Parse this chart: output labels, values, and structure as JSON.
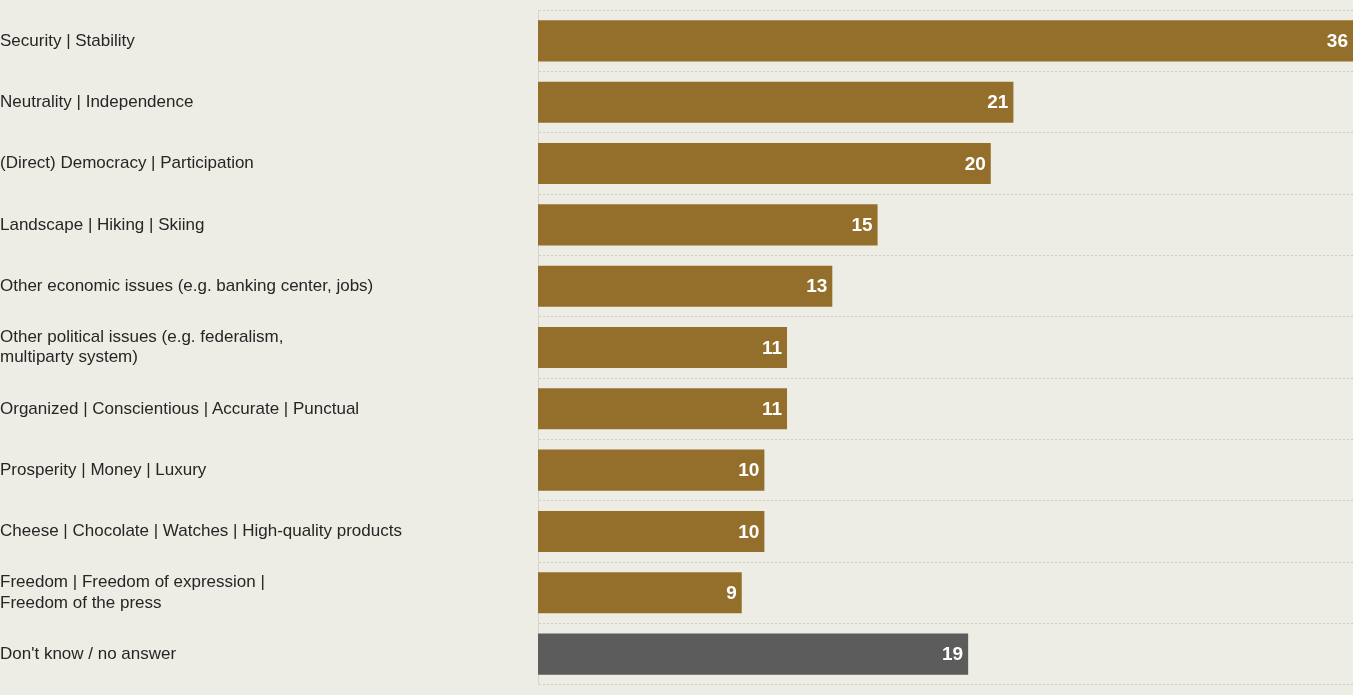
{
  "chart_data": {
    "type": "bar",
    "orientation": "horizontal",
    "categories": [
      "Security | Stability",
      "Neutrality | Independence",
      "(Direct) Democracy | Participation",
      "Landscape | Hiking | Skiing",
      "Other economic issues (e.g. banking center, jobs)",
      "Other political issues (e.g. federalism,\nmultiparty system)",
      "Organized | Conscientious | Accurate | Punctual",
      "Prosperity | Money | Luxury",
      "Cheese | Chocolate | Watches | High-quality products",
      "Freedom | Freedom of expression |\nFreedom of the press",
      "Don't know / no answer"
    ],
    "values": [
      36,
      21,
      20,
      15,
      13,
      11,
      11,
      10,
      10,
      9,
      19
    ],
    "colors": [
      "#946f2b",
      "#946f2b",
      "#946f2b",
      "#946f2b",
      "#946f2b",
      "#946f2b",
      "#946f2b",
      "#946f2b",
      "#946f2b",
      "#946f2b",
      "#5b5c5b"
    ],
    "xlim": [
      0,
      36
    ],
    "data_labels": true,
    "grid": "y",
    "tick_labels": "y"
  }
}
